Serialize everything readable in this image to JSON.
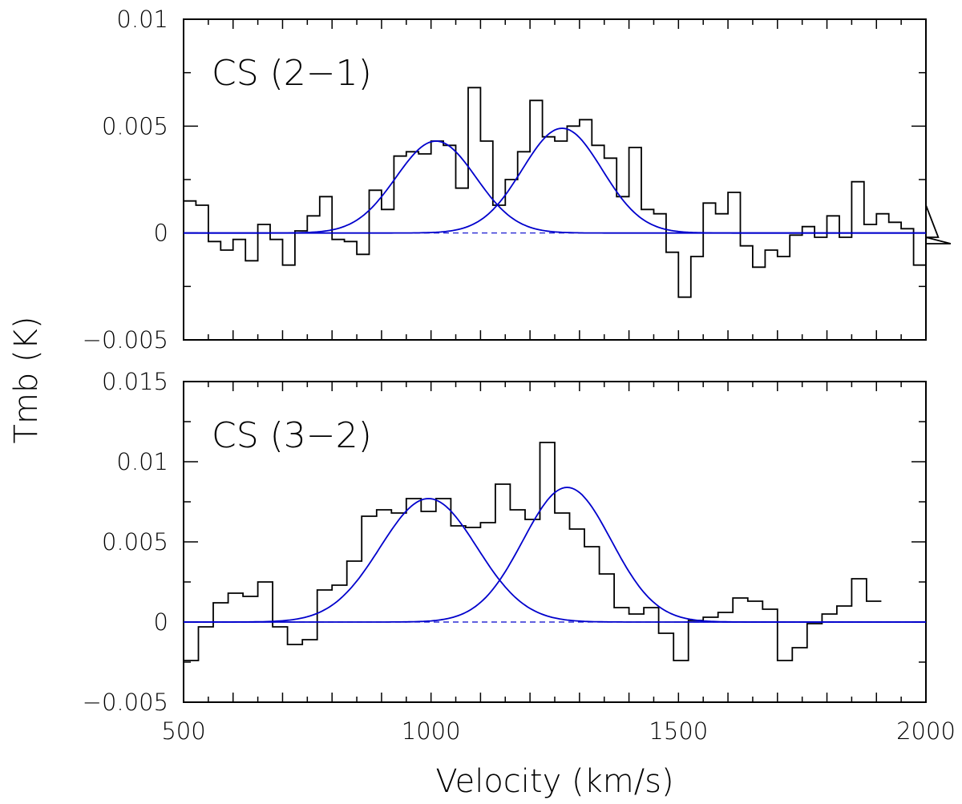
{
  "chart_data": {
    "type": "line",
    "figure": {
      "xlabel": "Velocity (km/s)",
      "ylabel": "Tmb (K)",
      "xlim": [
        500,
        2000
      ],
      "x_ticks": [
        500,
        1000,
        1500,
        2000
      ],
      "x_tick_labels": [
        "500",
        "1000",
        "1500",
        "2000"
      ]
    },
    "panels": [
      {
        "label": "CS (2−1)",
        "ylim": [
          -0.005,
          0.01
        ],
        "y_ticks": [
          -0.005,
          0,
          0.005,
          0.01
        ],
        "y_tick_labels": [
          "−0.005",
          "0",
          "0.005",
          "0.01"
        ],
        "spectrum": {
          "style": "histogram",
          "color": "#000000",
          "channel_width_kms": 25,
          "x_start": 500,
          "values": [
            0.0015,
            0.0013,
            -0.0004,
            -0.0008,
            -0.0003,
            -0.0013,
            0.0004,
            -0.0003,
            -0.0015,
            0.0001,
            0.0008,
            0.0017,
            -0.0003,
            -0.0004,
            -0.001,
            0.002,
            0.0011,
            0.0036,
            0.0038,
            0.0037,
            0.0043,
            0.0041,
            0.0021,
            0.0068,
            0.0043,
            0.0013,
            0.0025,
            0.0038,
            0.0062,
            0.0045,
            0.0043,
            0.005,
            0.0053,
            0.0041,
            0.0035,
            0.0017,
            0.004,
            0.0011,
            0.0009,
            -0.0009,
            -0.003,
            -0.0011,
            0.0014,
            0.0009,
            0.0019,
            -0.0006,
            -0.0016,
            -0.0008,
            -0.0011,
            -0.0001,
            0.0003,
            -0.0002,
            0.0008,
            -0.0002,
            0.0024,
            0.0004,
            0.0009,
            0.0005,
            0.0002,
            -0.0015,
            0.0013,
            -0.0002,
            -0.0005
          ]
        },
        "fits": [
          {
            "amplitude": 0.0043,
            "center": 1010,
            "fwhm": 190,
            "color": "#0000cc"
          },
          {
            "amplitude": 0.0049,
            "center": 1265,
            "fwhm": 190,
            "color": "#0000cc"
          }
        ],
        "baseline": {
          "value": 0,
          "color": "#0000cc"
        }
      },
      {
        "label": "CS (3−2)",
        "ylim": [
          -0.005,
          0.015
        ],
        "y_ticks": [
          -0.005,
          0,
          0.005,
          0.01,
          0.015
        ],
        "y_tick_labels": [
          "−0.005",
          "0",
          "0.005",
          "0.01",
          "0.015"
        ],
        "spectrum": {
          "style": "histogram",
          "color": "#000000",
          "channel_width_kms": 30,
          "x_start": 500,
          "values": [
            -0.0024,
            -0.0003,
            0.0012,
            0.0018,
            0.0016,
            0.0025,
            -0.0003,
            -0.0014,
            -0.0011,
            0.002,
            0.0023,
            0.0038,
            0.0066,
            0.007,
            0.0068,
            0.0077,
            0.0069,
            0.0077,
            0.006,
            0.0059,
            0.0062,
            0.0086,
            0.007,
            0.0064,
            0.0112,
            0.0068,
            0.0058,
            0.0047,
            0.003,
            0.0009,
            0.0005,
            0.0009,
            -0.0007,
            -0.0024,
            0.0001,
            0.0003,
            0.0006,
            0.0015,
            0.0013,
            0.0008,
            -0.0024,
            -0.0016,
            -0.0001,
            0.0005,
            0.001,
            0.0027,
            0.0013
          ]
        },
        "fits": [
          {
            "amplitude": 0.0077,
            "center": 995,
            "fwhm": 230,
            "color": "#0000cc"
          },
          {
            "amplitude": 0.0084,
            "center": 1275,
            "fwhm": 210,
            "color": "#0000cc"
          }
        ],
        "baseline": {
          "value": 0,
          "color": "#0000cc"
        }
      }
    ]
  }
}
